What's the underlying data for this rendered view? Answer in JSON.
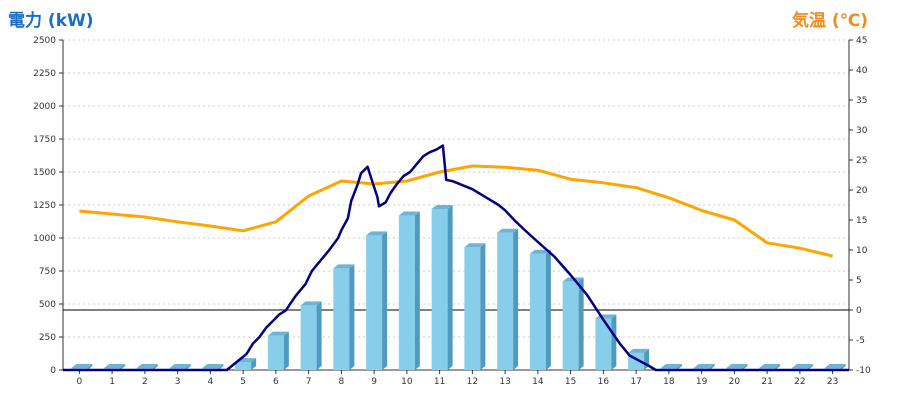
{
  "chart_data": {
    "type": "bar",
    "left_axis_label": "電力 (kW)",
    "right_axis_label": "気温 (℃)",
    "categories": [
      "0",
      "1",
      "2",
      "3",
      "4",
      "5",
      "6",
      "7",
      "8",
      "9",
      "10",
      "11",
      "12",
      "13",
      "14",
      "15",
      "16",
      "17",
      "18",
      "19",
      "20",
      "21",
      "22",
      "23"
    ],
    "left_ticks": [
      "0",
      "250",
      "500",
      "750",
      "1000",
      "1250",
      "1500",
      "1750",
      "2000",
      "2250",
      "2500"
    ],
    "right_ticks": [
      "-10",
      "-5",
      "0",
      "5",
      "10",
      "15",
      "20",
      "25",
      "30",
      "35",
      "40",
      "45"
    ],
    "left_ylim": [
      0,
      2500
    ],
    "right_ylim": [
      -10,
      45
    ],
    "grid": true,
    "reference_line_right": 0,
    "colors": {
      "left_title": "#1a6fc2",
      "right_title": "#f08c1e",
      "bars": "#87ceeb",
      "bar_shade": "#4f9bbf",
      "bar_top": "#6fb4d6",
      "power_line": "#000080",
      "temperature_line": "#ffa500",
      "grid": "#bbbbbb"
    },
    "series": [
      {
        "type": "bar",
        "axis": "left",
        "values": [
          0,
          0,
          0,
          0,
          0,
          60,
          260,
          490,
          770,
          1020,
          1170,
          1220,
          930,
          1040,
          880,
          670,
          390,
          130,
          0,
          0,
          0,
          0,
          0,
          0
        ]
      },
      {
        "type": "line",
        "axis": "left",
        "x": [
          4.5,
          4.9,
          5.1,
          5.3,
          5.5,
          5.7,
          5.9,
          6.1,
          6.3,
          6.6,
          6.9,
          7.1,
          7.3,
          7.6,
          7.9,
          8.0,
          8.2,
          8.3,
          8.5,
          8.6,
          8.8,
          8.9,
          9.1,
          9.15,
          9.35,
          9.5,
          9.7,
          9.9,
          10.1,
          10.3,
          10.5,
          10.7,
          10.9,
          11.1,
          11.2,
          11.4,
          11.7,
          12.0,
          12.4,
          12.8,
          13.0,
          13.3,
          13.6,
          14.0,
          14.5,
          15.0,
          15.5,
          16.0,
          16.5,
          16.8,
          17.1,
          17.4,
          17.6,
          18.0,
          19.0,
          20.0,
          21.0,
          22.0,
          23.0,
          23.5
        ],
        "y": [
          0,
          80,
          120,
          200,
          250,
          320,
          370,
          420,
          450,
          560,
          650,
          750,
          810,
          900,
          1000,
          1060,
          1150,
          1280,
          1410,
          1490,
          1540,
          1460,
          1310,
          1240,
          1270,
          1340,
          1410,
          1470,
          1500,
          1560,
          1620,
          1650,
          1670,
          1700,
          1440,
          1430,
          1400,
          1370,
          1310,
          1250,
          1210,
          1130,
          1060,
          970,
          860,
          720,
          570,
          380,
          200,
          110,
          70,
          30,
          0,
          0,
          0,
          0,
          0,
          0,
          0,
          0
        ]
      },
      {
        "type": "line",
        "axis": "right",
        "x": [
          0,
          1,
          2,
          3,
          4,
          5,
          6,
          7,
          8,
          9,
          10,
          11,
          12,
          13,
          14,
          15,
          16,
          17,
          18,
          19,
          20,
          21,
          22,
          23
        ],
        "y": [
          16.5,
          16,
          15.5,
          14.7,
          14,
          13.2,
          14.7,
          19,
          21.5,
          21,
          21.5,
          23,
          24,
          23.8,
          23.3,
          21.8,
          21.2,
          20.4,
          18.7,
          16.6,
          15,
          11.2,
          10.3,
          9
        ]
      }
    ]
  }
}
